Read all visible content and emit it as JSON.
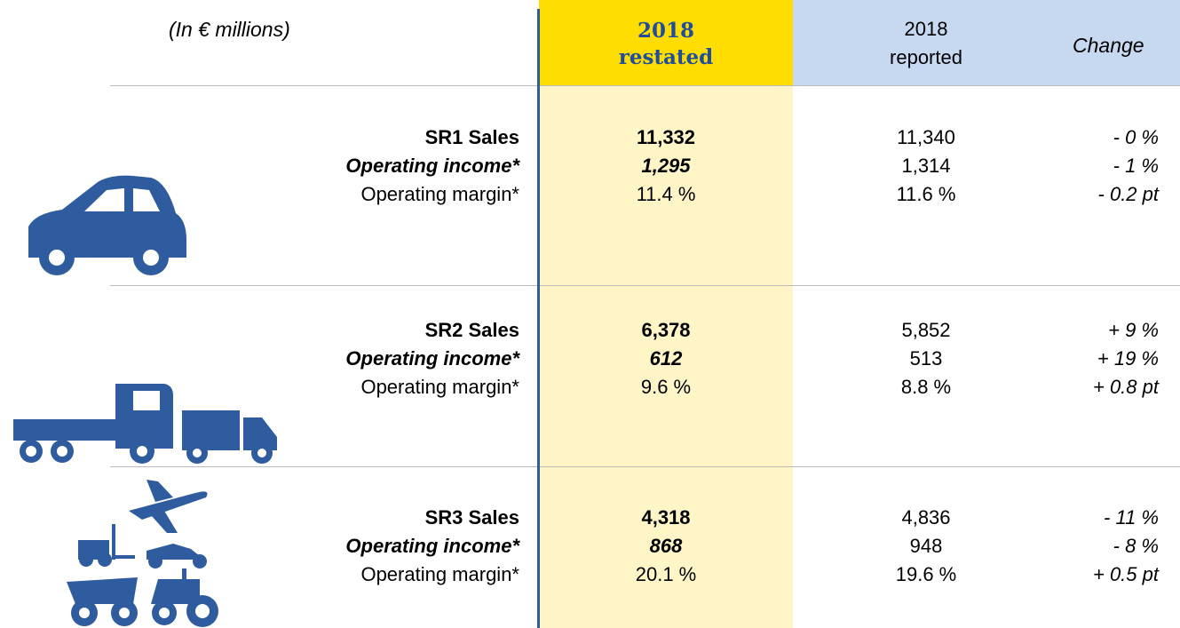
{
  "header": {
    "unit": "(In € millions)",
    "columns": [
      {
        "line1": "2018",
        "line2": "restated"
      },
      {
        "line1": "2018",
        "line2": "reported"
      },
      {
        "line1": "Change"
      }
    ]
  },
  "sections": [
    {
      "rows": [
        {
          "label": "SR1 Sales",
          "restated": "11,332",
          "reported": "11,340",
          "change": "- 0 %"
        },
        {
          "label": "Operating income*",
          "restated": "1,295",
          "reported": "1,314",
          "change": "- 1 %"
        },
        {
          "label": "Operating margin*",
          "restated": "11.4 %",
          "reported": "11.6 %",
          "change": "- 0.2 pt"
        }
      ]
    },
    {
      "rows": [
        {
          "label": "SR2 Sales",
          "restated": "6,378",
          "reported": "5,852",
          "change": "+ 9 %"
        },
        {
          "label": "Operating income*",
          "restated": "612",
          "reported": "513",
          "change": "+ 19 %"
        },
        {
          "label": "Operating margin*",
          "restated": "9.6 %",
          "reported": "8.8 %",
          "change": "+ 0.8 pt"
        }
      ]
    },
    {
      "rows": [
        {
          "label": "SR3 Sales",
          "restated": "4,318",
          "reported": "4,836",
          "change": "- 11 %"
        },
        {
          "label": "Operating income*",
          "restated": "868",
          "reported": "948",
          "change": "- 8 %"
        },
        {
          "label": "Operating margin*",
          "restated": "20.1 %",
          "reported": "19.6 %",
          "change": "+ 0.5 pt"
        }
      ]
    }
  ]
}
